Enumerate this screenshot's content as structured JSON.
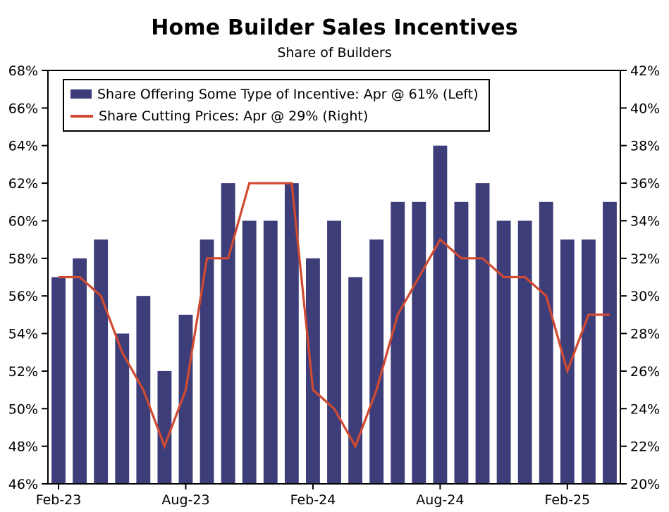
{
  "chart_data": {
    "type": "bar",
    "title": "Home Builder Sales Incentives",
    "subtitle": "Share of Builders",
    "categories": [
      "Feb-23",
      "Mar-23",
      "Apr-23",
      "May-23",
      "Jun-23",
      "Jul-23",
      "Aug-23",
      "Sep-23",
      "Oct-23",
      "Nov-23",
      "Dec-23",
      "Jan-24",
      "Feb-24",
      "Mar-24",
      "Apr-24",
      "May-24",
      "Jun-24",
      "Jul-24",
      "Aug-24",
      "Sep-24",
      "Oct-24",
      "Nov-24",
      "Dec-24",
      "Jan-25",
      "Feb-25",
      "Mar-25",
      "Apr-25"
    ],
    "x_tick_indices": [
      0,
      6,
      12,
      18,
      24
    ],
    "x_tick_labels": [
      "Feb-23",
      "Aug-23",
      "Feb-24",
      "Aug-24",
      "Feb-25"
    ],
    "series": [
      {
        "name": "Share Offering Some Type of Incentive: Apr @ 61% (Left)",
        "type": "bar",
        "axis": "left",
        "color": "#3D3D7A",
        "values": [
          57,
          58,
          59,
          54,
          56,
          52,
          55,
          59,
          62,
          60,
          60,
          62,
          58,
          60,
          57,
          59,
          61,
          61,
          64,
          61,
          62,
          60,
          60,
          61,
          59,
          59,
          61
        ]
      },
      {
        "name": "Share Cutting Prices: Apr @ 29% (Right)",
        "type": "line",
        "axis": "right",
        "color": "#D04A32",
        "values": [
          31,
          31,
          30,
          27,
          25,
          22,
          25,
          32,
          32,
          36,
          36,
          36,
          25,
          24,
          22,
          25,
          29,
          31,
          33,
          32,
          32,
          31,
          31,
          30,
          26,
          29,
          29
        ]
      }
    ],
    "left_axis": {
      "min": 46,
      "max": 68,
      "step": 2,
      "suffix": "%"
    },
    "right_axis": {
      "min": 20,
      "max": 42,
      "step": 2,
      "suffix": "%"
    },
    "grid": false,
    "legend_position": "top-left",
    "axis_color": "#000000",
    "background_color": "#ffffff"
  }
}
